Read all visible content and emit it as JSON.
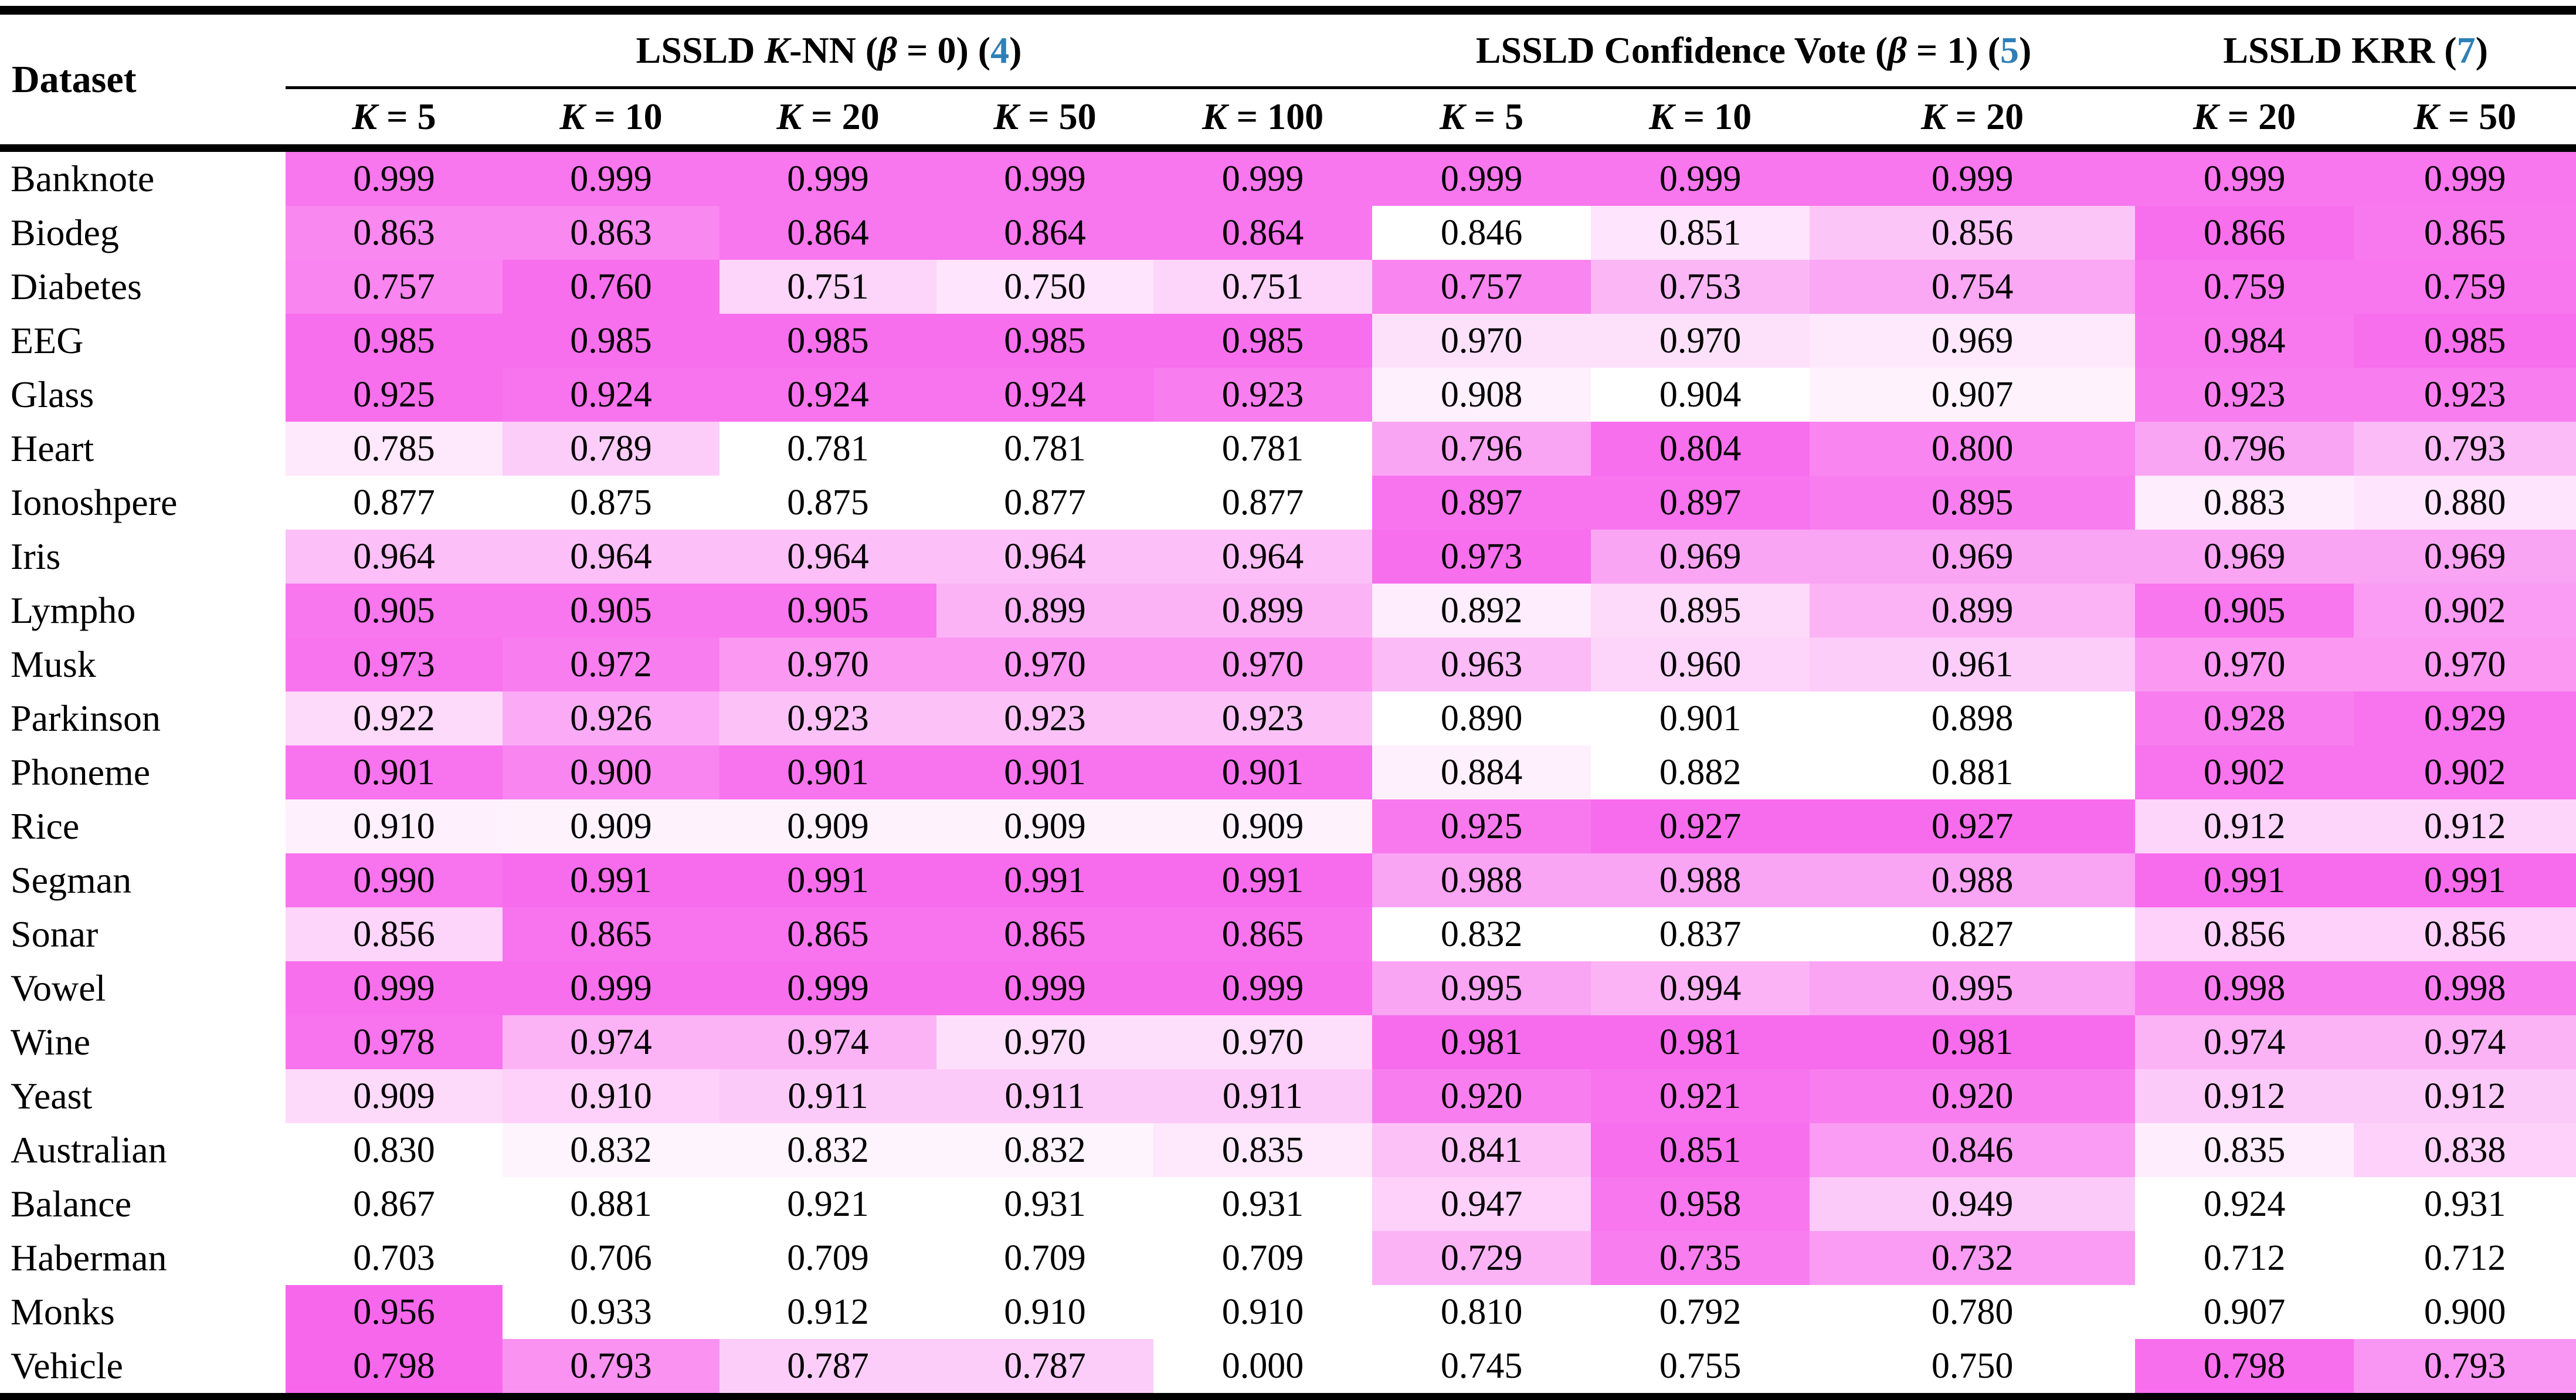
{
  "table": {
    "dataset_header": "Dataset",
    "groups": [
      {
        "title_runs": [
          {
            "text": "LSSLD ",
            "style": ""
          },
          {
            "text": "K",
            "style": "i"
          },
          {
            "text": "-NN (",
            "style": ""
          },
          {
            "text": "β",
            "style": "i"
          },
          {
            "text": " = 0) (",
            "style": ""
          },
          {
            "text": "4",
            "style": "cite"
          },
          {
            "text": ")",
            "style": ""
          }
        ],
        "columns": [
          "K = 5",
          "K = 10",
          "K = 20",
          "K = 50",
          "K = 100"
        ]
      },
      {
        "title_runs": [
          {
            "text": "LSSLD Confidence Vote (",
            "style": ""
          },
          {
            "text": "β",
            "style": "i"
          },
          {
            "text": " = 1) (",
            "style": ""
          },
          {
            "text": "5",
            "style": "cite"
          },
          {
            "text": ")",
            "style": ""
          }
        ],
        "columns": [
          "K = 5",
          "K = 10",
          "K = 20"
        ]
      },
      {
        "title_runs": [
          {
            "text": "LSSLD KRR (",
            "style": ""
          },
          {
            "text": "7",
            "style": "cite"
          },
          {
            "text": ")",
            "style": ""
          }
        ],
        "columns": [
          "K = 20",
          "K = 50"
        ]
      }
    ],
    "rows": [
      {
        "name": "Banknote",
        "values": [
          "0.999",
          "0.999",
          "0.999",
          "0.999",
          "0.999",
          "0.999",
          "0.999",
          "0.999",
          "0.999",
          "0.999"
        ],
        "heat": [
          0.9,
          0.9,
          0.9,
          0.9,
          0.9,
          0.9,
          0.9,
          0.9,
          0.9,
          0.9
        ]
      },
      {
        "name": "Biodeg",
        "values": [
          "0.863",
          "0.863",
          "0.864",
          "0.864",
          "0.864",
          "0.846",
          "0.851",
          "0.856",
          "0.866",
          "0.865"
        ],
        "heat": [
          0.78,
          0.78,
          0.9,
          0.9,
          0.9,
          0,
          0.18,
          0.38,
          0.95,
          0.88
        ]
      },
      {
        "name": "Diabetes",
        "values": [
          "0.757",
          "0.760",
          "0.751",
          "0.750",
          "0.751",
          "0.757",
          "0.753",
          "0.754",
          "0.759",
          "0.759"
        ],
        "heat": [
          0.8,
          0.95,
          0.28,
          0.18,
          0.28,
          0.8,
          0.48,
          0.58,
          0.9,
          0.9
        ]
      },
      {
        "name": "EEG",
        "values": [
          "0.985",
          "0.985",
          "0.985",
          "0.985",
          "0.985",
          "0.970",
          "0.970",
          "0.969",
          "0.984",
          "0.985"
        ],
        "heat": [
          0.95,
          0.95,
          0.95,
          0.95,
          0.95,
          0.2,
          0.2,
          0.15,
          0.88,
          0.95
        ]
      },
      {
        "name": "Glass",
        "values": [
          "0.925",
          "0.924",
          "0.924",
          "0.924",
          "0.923",
          "0.908",
          "0.904",
          "0.907",
          "0.923",
          "0.923"
        ],
        "heat": [
          0.95,
          0.92,
          0.92,
          0.92,
          0.85,
          0.1,
          0,
          0.08,
          0.85,
          0.85
        ]
      },
      {
        "name": "Heart",
        "values": [
          "0.785",
          "0.789",
          "0.781",
          "0.781",
          "0.781",
          "0.796",
          "0.804",
          "0.800",
          "0.796",
          "0.793"
        ],
        "heat": [
          0.15,
          0.33,
          0,
          0,
          0,
          0.6,
          0.95,
          0.8,
          0.6,
          0.45
        ]
      },
      {
        "name": "Ionoshpere",
        "values": [
          "0.877",
          "0.875",
          "0.875",
          "0.877",
          "0.877",
          "0.897",
          "0.897",
          "0.895",
          "0.883",
          "0.880"
        ],
        "heat": [
          0,
          0,
          0,
          0,
          0,
          0.92,
          0.92,
          0.85,
          0.12,
          0.18
        ]
      },
      {
        "name": "Iris",
        "values": [
          "0.964",
          "0.964",
          "0.964",
          "0.964",
          "0.964",
          "0.973",
          "0.969",
          "0.969",
          "0.969",
          "0.969"
        ],
        "heat": [
          0.42,
          0.42,
          0.42,
          0.42,
          0.42,
          0.95,
          0.6,
          0.6,
          0.6,
          0.6
        ]
      },
      {
        "name": "Lympho",
        "values": [
          "0.905",
          "0.905",
          "0.905",
          "0.899",
          "0.899",
          "0.892",
          "0.895",
          "0.899",
          "0.905",
          "0.902"
        ],
        "heat": [
          0.9,
          0.9,
          0.9,
          0.5,
          0.5,
          0.12,
          0.25,
          0.5,
          0.9,
          0.65
        ]
      },
      {
        "name": "Musk",
        "values": [
          "0.973",
          "0.972",
          "0.970",
          "0.970",
          "0.970",
          "0.963",
          "0.960",
          "0.961",
          "0.970",
          "0.970"
        ],
        "heat": [
          0.92,
          0.85,
          0.68,
          0.68,
          0.68,
          0.45,
          0.28,
          0.33,
          0.68,
          0.68
        ]
      },
      {
        "name": "Parkinson",
        "values": [
          "0.922",
          "0.926",
          "0.923",
          "0.923",
          "0.923",
          "0.890",
          "0.901",
          "0.898",
          "0.928",
          "0.929"
        ],
        "heat": [
          0.25,
          0.55,
          0.4,
          0.4,
          0.4,
          0,
          0,
          0,
          0.85,
          0.92
        ]
      },
      {
        "name": "Phoneme",
        "values": [
          "0.901",
          "0.900",
          "0.901",
          "0.901",
          "0.901",
          "0.884",
          "0.882",
          "0.881",
          "0.902",
          "0.902"
        ],
        "heat": [
          0.92,
          0.8,
          0.92,
          0.92,
          0.92,
          0.1,
          0,
          0,
          0.92,
          0.92
        ]
      },
      {
        "name": "Rice",
        "values": [
          "0.910",
          "0.909",
          "0.909",
          "0.909",
          "0.909",
          "0.925",
          "0.927",
          "0.927",
          "0.912",
          "0.912"
        ],
        "heat": [
          0.1,
          0.08,
          0.08,
          0.08,
          0.08,
          0.88,
          0.97,
          0.97,
          0.28,
          0.28
        ]
      },
      {
        "name": "Segman",
        "values": [
          "0.990",
          "0.991",
          "0.991",
          "0.991",
          "0.991",
          "0.988",
          "0.988",
          "0.988",
          "0.991",
          "0.991"
        ],
        "heat": [
          0.92,
          0.97,
          0.97,
          0.97,
          0.97,
          0.6,
          0.6,
          0.6,
          0.97,
          0.97
        ]
      },
      {
        "name": "Sonar",
        "values": [
          "0.856",
          "0.865",
          "0.865",
          "0.865",
          "0.865",
          "0.832",
          "0.837",
          "0.827",
          "0.856",
          "0.856"
        ],
        "heat": [
          0.28,
          0.92,
          0.92,
          0.92,
          0.92,
          0,
          0,
          0,
          0.3,
          0.3
        ]
      },
      {
        "name": "Vowel",
        "values": [
          "0.999",
          "0.999",
          "0.999",
          "0.999",
          "0.999",
          "0.995",
          "0.994",
          "0.995",
          "0.998",
          "0.998"
        ],
        "heat": [
          0.95,
          0.95,
          0.95,
          0.95,
          0.95,
          0.6,
          0.5,
          0.6,
          0.85,
          0.85
        ]
      },
      {
        "name": "Wine",
        "values": [
          "0.978",
          "0.974",
          "0.974",
          "0.970",
          "0.970",
          "0.981",
          "0.981",
          "0.981",
          "0.974",
          "0.974"
        ],
        "heat": [
          0.92,
          0.5,
          0.5,
          0.22,
          0.22,
          0.97,
          0.97,
          0.97,
          0.5,
          0.5
        ]
      },
      {
        "name": "Yeast",
        "values": [
          "0.909",
          "0.910",
          "0.911",
          "0.911",
          "0.911",
          "0.920",
          "0.921",
          "0.920",
          "0.912",
          "0.912"
        ],
        "heat": [
          0.25,
          0.3,
          0.35,
          0.35,
          0.35,
          0.85,
          0.92,
          0.85,
          0.35,
          0.35
        ]
      },
      {
        "name": "Australian",
        "values": [
          "0.830",
          "0.832",
          "0.832",
          "0.832",
          "0.835",
          "0.841",
          "0.851",
          "0.846",
          "0.835",
          "0.838"
        ],
        "heat": [
          0,
          0.07,
          0.07,
          0.07,
          0.15,
          0.4,
          0.95,
          0.65,
          0.12,
          0.3
        ]
      },
      {
        "name": "Balance",
        "values": [
          "0.867",
          "0.881",
          "0.921",
          "0.931",
          "0.931",
          "0.947",
          "0.958",
          "0.949",
          "0.924",
          "0.931"
        ],
        "heat": [
          0,
          0,
          0,
          0,
          0,
          0.3,
          0.9,
          0.35,
          0,
          0
        ]
      },
      {
        "name": "Haberman",
        "values": [
          "0.703",
          "0.706",
          "0.709",
          "0.709",
          "0.709",
          "0.729",
          "0.735",
          "0.732",
          "0.712",
          "0.712"
        ],
        "heat": [
          0,
          0,
          0,
          0,
          0,
          0.5,
          0.85,
          0.65,
          0,
          0
        ]
      },
      {
        "name": "Monks",
        "values": [
          "0.956",
          "0.933",
          "0.912",
          "0.910",
          "0.910",
          "0.810",
          "0.792",
          "0.780",
          "0.907",
          "0.900"
        ],
        "heat": [
          1,
          0,
          0,
          0,
          0,
          0,
          0,
          0,
          0,
          0
        ]
      },
      {
        "name": "Vehicle",
        "values": [
          "0.798",
          "0.793",
          "0.787",
          "0.787",
          "0.000",
          "0.745",
          "0.755",
          "0.750",
          "0.798",
          "0.793"
        ],
        "heat": [
          1,
          0.72,
          0.33,
          0.33,
          0,
          0,
          0,
          0,
          0.95,
          0.7
        ]
      }
    ]
  },
  "colors": {
    "heat_max": "#f767ec",
    "heat_min": "#ffffff",
    "citation_blue": "#2e7fb8",
    "rule_black": "#000000"
  }
}
